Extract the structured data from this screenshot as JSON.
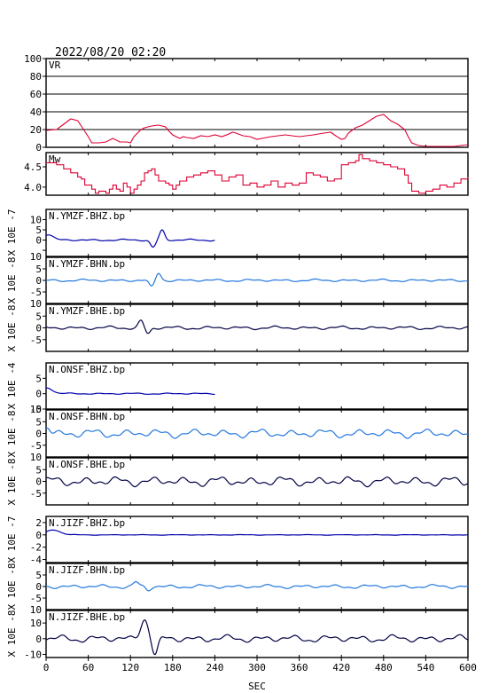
{
  "header": {
    "datetime": "2022/08/20 02:20"
  },
  "chart_data": {
    "type": "line",
    "xlabel": "SEC",
    "xlim": [
      0,
      600
    ],
    "xticks": [
      0,
      60,
      120,
      180,
      240,
      300,
      360,
      420,
      480,
      540,
      600
    ],
    "panels": [
      {
        "label": "VR",
        "type": "line",
        "color": "#dd0033",
        "ylim": [
          0,
          100
        ],
        "yticks": [
          0,
          20,
          40,
          60,
          80,
          100
        ],
        "grid": [
          20,
          40,
          60,
          80
        ],
        "step": false,
        "x": [
          0,
          15,
          25,
          35,
          45,
          55,
          60,
          65,
          75,
          85,
          95,
          105,
          115,
          120,
          125,
          135,
          140,
          145,
          150,
          160,
          170,
          175,
          180,
          190,
          195,
          200,
          210,
          220,
          230,
          240,
          250,
          260,
          265,
          270,
          280,
          290,
          300,
          320,
          340,
          360,
          380,
          395,
          405,
          410,
          420,
          425,
          430,
          440,
          450,
          460,
          470,
          480,
          490,
          495,
          500,
          505,
          510,
          515,
          520,
          530,
          540,
          550,
          560,
          570,
          580,
          590,
          600
        ],
        "y": [
          19,
          20,
          26,
          32,
          30,
          18,
          12,
          5,
          5,
          6,
          10,
          6,
          6,
          5,
          12,
          20,
          22,
          23,
          24,
          25,
          23,
          18,
          14,
          10,
          12,
          11,
          10,
          13,
          12,
          14,
          12,
          15,
          17,
          16,
          13,
          12,
          9,
          12,
          14,
          12,
          14,
          16,
          17,
          14,
          9,
          10,
          16,
          22,
          25,
          30,
          35,
          37,
          30,
          28,
          26,
          23,
          20,
          12,
          5,
          2,
          1,
          1,
          1,
          1,
          1,
          2,
          3
        ]
      },
      {
        "label": "Mw",
        "type": "step",
        "color": "#dd0033",
        "ylim": [
          3.8,
          4.85
        ],
        "yticks": [
          4.0,
          4.5
        ],
        "ytick_labels": [
          "4.0",
          "4.5"
        ],
        "step": true,
        "x": [
          0,
          15,
          25,
          35,
          45,
          50,
          55,
          65,
          70,
          75,
          85,
          90,
          95,
          100,
          105,
          110,
          115,
          120,
          125,
          130,
          135,
          140,
          145,
          150,
          155,
          160,
          170,
          175,
          180,
          185,
          190,
          200,
          210,
          220,
          230,
          240,
          250,
          260,
          270,
          280,
          290,
          300,
          310,
          320,
          330,
          340,
          350,
          360,
          370,
          380,
          390,
          400,
          410,
          420,
          430,
          440,
          445,
          450,
          460,
          470,
          480,
          490,
          500,
          510,
          515,
          520,
          530,
          540,
          550,
          560,
          570,
          580,
          590,
          600
        ],
        "y": [
          4.6,
          4.55,
          4.45,
          4.35,
          4.25,
          4.2,
          4.05,
          3.95,
          3.85,
          3.9,
          3.85,
          3.95,
          4.05,
          3.95,
          3.9,
          4.1,
          4.0,
          3.85,
          3.95,
          4.05,
          4.15,
          4.35,
          4.4,
          4.45,
          4.3,
          4.15,
          4.1,
          4.05,
          3.95,
          4.05,
          4.15,
          4.25,
          4.3,
          4.35,
          4.4,
          4.3,
          4.15,
          4.25,
          4.3,
          4.05,
          4.1,
          4.0,
          4.05,
          4.15,
          4.0,
          4.1,
          4.05,
          4.1,
          4.35,
          4.3,
          4.25,
          4.15,
          4.2,
          4.55,
          4.6,
          4.65,
          4.8,
          4.7,
          4.65,
          4.6,
          4.55,
          4.5,
          4.45,
          4.3,
          4.1,
          3.9,
          3.85,
          3.9,
          3.95,
          4.05,
          4.0,
          4.1,
          4.2,
          4.25
        ]
      },
      {
        "label": "N.YMZF.BHZ.bp",
        "type": "waveform",
        "color": "#0000aa",
        "ylim": [
          -8,
          15
        ],
        "yticks": [
          -5,
          0,
          5,
          10
        ],
        "ytick_labels": [
          "",
          "0",
          "5",
          "10"
        ],
        "extra_top_tick": "10",
        "end": 240,
        "amp": 0.5,
        "events": [
          {
            "t": 2,
            "a": 2.8,
            "w": 10
          },
          {
            "t": 152,
            "a": -3.5,
            "w": 5
          },
          {
            "t": 165,
            "a": 4.8,
            "w": 5
          }
        ]
      },
      {
        "label": "N.YMZF.BHN.bp",
        "type": "waveform",
        "color": "#2277dd",
        "ylim": [
          -10,
          10
        ],
        "yticks": [
          -5,
          0,
          5
        ],
        "ytick_labels": [
          "-5",
          "0",
          "5"
        ],
        "end": 600,
        "amp": 0.6,
        "events": [
          {
            "t": 150,
            "a": -3.0,
            "w": 5
          },
          {
            "t": 160,
            "a": 3.2,
            "w": 5
          }
        ]
      },
      {
        "label": "N.YMZF.BHE.bp",
        "type": "waveform",
        "color": "#000044",
        "ylim": [
          -10,
          10
        ],
        "yticks": [
          -5,
          0,
          5
        ],
        "ytick_labels": [
          "-5",
          "0",
          "5"
        ],
        "end": 600,
        "amp": 0.8,
        "events": [
          {
            "t": 135,
            "a": 3.0,
            "w": 5
          },
          {
            "t": 145,
            "a": -2.5,
            "w": 5
          }
        ]
      },
      {
        "label": "N.ONSF.BHZ.bp",
        "type": "waveform",
        "color": "#0000aa",
        "ylim": [
          -5,
          10
        ],
        "yticks": [
          -5,
          0,
          5
        ],
        "ytick_labels": [
          "-5",
          "0",
          "5"
        ],
        "end": 240,
        "amp": 0.25,
        "events": [
          {
            "t": 2,
            "a": 2.0,
            "w": 10
          }
        ]
      },
      {
        "label": "N.ONSF.BHN.bp",
        "type": "waveform",
        "color": "#2277dd",
        "ylim": [
          -10,
          10
        ],
        "yticks": [
          -5,
          0,
          5
        ],
        "ytick_labels": [
          "-5",
          "0",
          "5"
        ],
        "end": 600,
        "amp": 2.0,
        "events": [
          {
            "t": 2,
            "a": 3.0,
            "w": 6
          }
        ]
      },
      {
        "label": "N.ONSF.BHE.bp",
        "type": "waveform",
        "color": "#000044",
        "ylim": [
          -10,
          10
        ],
        "yticks": [
          -5,
          0,
          5
        ],
        "ytick_labels": [
          "-5",
          "0",
          "5"
        ],
        "end": 600,
        "amp": 2.2,
        "events": []
      },
      {
        "label": "N.JIZF.BHZ.bp",
        "type": "waveform",
        "color": "#0000aa",
        "ylim": [
          -4.5,
          3
        ],
        "yticks": [
          -4,
          -2,
          0,
          2
        ],
        "ytick_labels": [
          "-4",
          "-2",
          "0",
          "2"
        ],
        "end": 600,
        "amp": 0.05,
        "events": [
          {
            "t": 10,
            "a": 0.8,
            "w": 14
          }
        ]
      },
      {
        "label": "N.JIZF.BHN.bp",
        "type": "waveform",
        "color": "#2277dd",
        "ylim": [
          -10,
          10
        ],
        "yticks": [
          -5,
          0,
          5
        ],
        "ytick_labels": [
          "-5",
          "0",
          "5"
        ],
        "end": 600,
        "amp": 0.9,
        "events": [
          {
            "t": 128,
            "a": 1.8,
            "w": 5
          },
          {
            "t": 145,
            "a": -1.6,
            "w": 5
          }
        ]
      },
      {
        "label": "N.JIZF.BHE.bp",
        "type": "waveform",
        "color": "#000044",
        "ylim": [
          -12,
          18
        ],
        "yticks": [
          -10,
          0,
          10
        ],
        "ytick_labels": [
          "-10",
          "0",
          "10"
        ],
        "end": 600,
        "amp": 2.5,
        "events": [
          {
            "t": 140,
            "a": 13,
            "w": 8
          },
          {
            "t": 155,
            "a": -11,
            "w": 6
          }
        ]
      }
    ],
    "yaxis_labels": [
      "X 10E -7",
      "X 10E -8",
      "X 10E -8",
      "X 10E -4",
      "X 10E -8",
      "X 10E -8",
      "X 10E -7",
      "X 10E -8",
      "X 10E -8"
    ],
    "extra_tick_labels": [
      "10",
      "10",
      "10",
      "10",
      "10"
    ]
  }
}
